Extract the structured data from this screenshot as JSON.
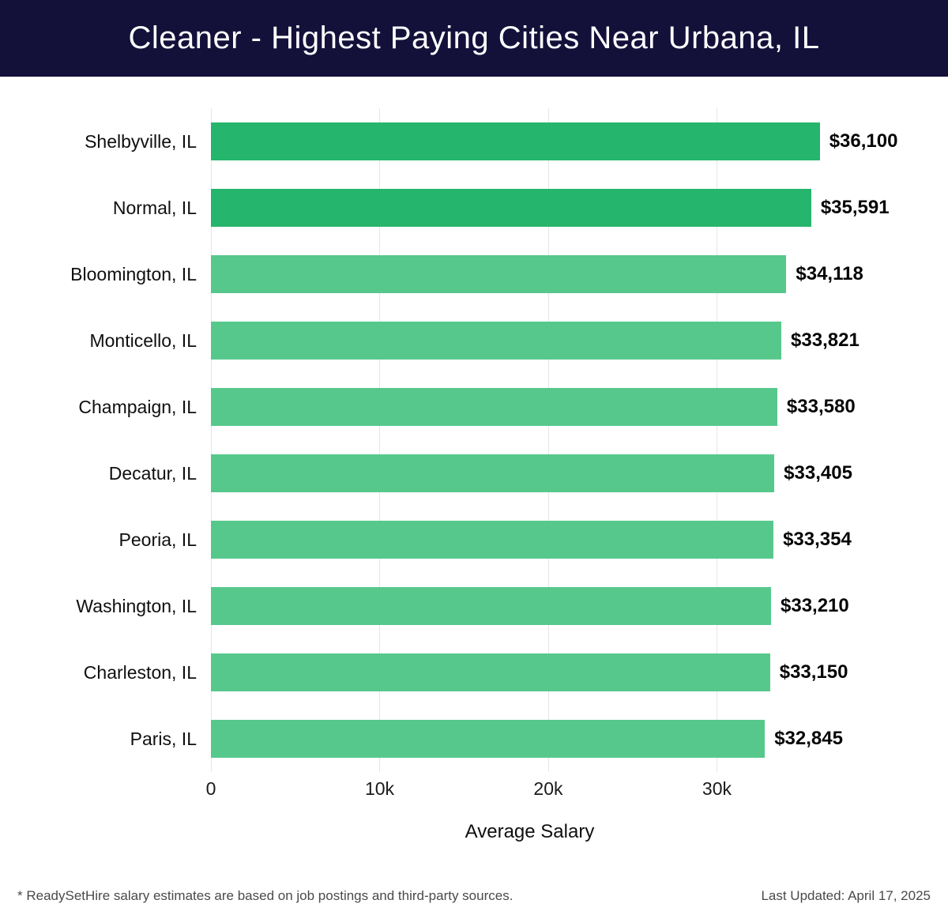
{
  "header": {
    "title": "Cleaner - Highest Paying Cities Near Urbana, IL"
  },
  "colors": {
    "header_bg": "#13103a",
    "grid": "#e5e5e5",
    "bar_primary": "#26b56c",
    "bar_secondary": "#57c88c"
  },
  "chart_data": {
    "type": "bar",
    "orientation": "horizontal",
    "title": "Cleaner - Highest Paying Cities Near Urbana, IL",
    "xlabel": "Average Salary",
    "ylabel": "",
    "grid": true,
    "legend": false,
    "xlim": [
      0,
      37800
    ],
    "categories": [
      "Shelbyville, IL",
      "Normal, IL",
      "Bloomington, IL",
      "Monticello, IL",
      "Champaign, IL",
      "Decatur, IL",
      "Peoria, IL",
      "Washington, IL",
      "Charleston, IL",
      "Paris, IL"
    ],
    "values": [
      36100,
      35591,
      34118,
      33821,
      33580,
      33405,
      33354,
      33210,
      33150,
      32845
    ],
    "value_labels": [
      "$36,100",
      "$35,591",
      "$34,118",
      "$33,821",
      "$33,580",
      "$33,405",
      "$33,354",
      "$33,210",
      "$33,150",
      "$32,845"
    ],
    "bar_colors": [
      "#26b56c",
      "#26b56c",
      "#57c88c",
      "#57c88c",
      "#57c88c",
      "#57c88c",
      "#57c88c",
      "#57c88c",
      "#57c88c",
      "#57c88c"
    ],
    "x_ticks": [
      {
        "value": 0,
        "label": "0"
      },
      {
        "value": 10000,
        "label": "10k"
      },
      {
        "value": 20000,
        "label": "20k"
      },
      {
        "value": 30000,
        "label": "30k"
      }
    ]
  },
  "footer": {
    "note": "* ReadySetHire salary estimates are based on job postings and third-party sources.",
    "last_updated": "Last Updated: April 17, 2025"
  }
}
